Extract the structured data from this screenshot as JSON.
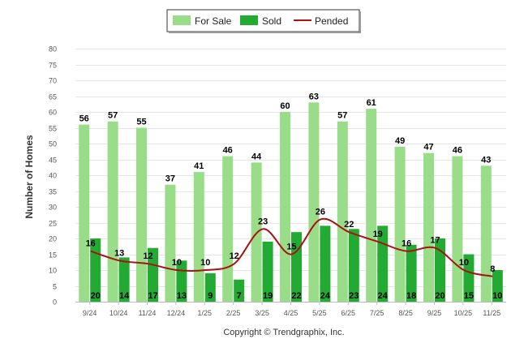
{
  "chart_data": {
    "type": "bar",
    "title": "",
    "xlabel": "",
    "ylabel": "Number of Homes",
    "ylim": [
      0,
      80
    ],
    "ytick_step": 5,
    "grid": true,
    "legend_position": "top-center",
    "categories": [
      "9/24",
      "10/24",
      "11/24",
      "12/24",
      "1/25",
      "2/25",
      "3/25",
      "4/25",
      "5/25",
      "6/25",
      "7/25",
      "8/25",
      "9/25",
      "10/25",
      "11/25"
    ],
    "series": [
      {
        "name": "For Sale",
        "kind": "bar",
        "color": "#99dd88",
        "values": [
          56,
          57,
          55,
          37,
          41,
          46,
          44,
          60,
          63,
          57,
          61,
          49,
          47,
          46,
          43
        ]
      },
      {
        "name": "Sold",
        "kind": "bar",
        "color": "#22aa33",
        "values": [
          20,
          14,
          17,
          13,
          9,
          7,
          19,
          22,
          24,
          23,
          24,
          18,
          20,
          15,
          10
        ]
      },
      {
        "name": "Pended",
        "kind": "line",
        "color": "#aa1111",
        "values": [
          16,
          13,
          12,
          10,
          10,
          12,
          23,
          15,
          26,
          22,
          19,
          16,
          17,
          10,
          8
        ]
      }
    ],
    "footer": "Copyright © Trendgraphix, Inc."
  }
}
